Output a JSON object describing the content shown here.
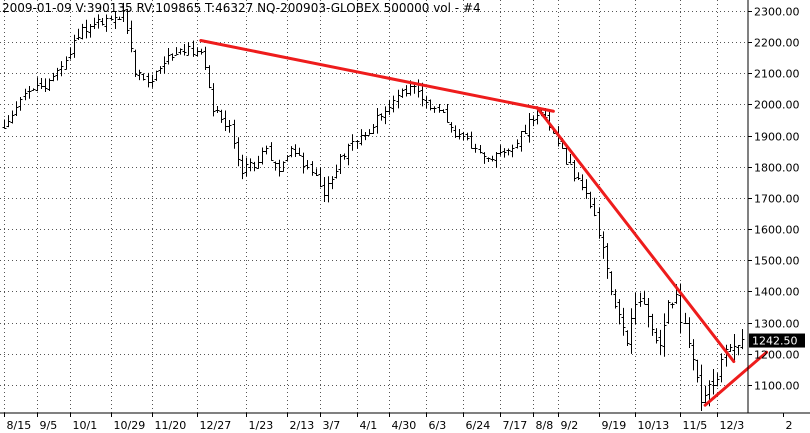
{
  "header": {
    "title": "2009-01-09  V:390135  RV:109865  T:46327  NQ-200903-GLOBEX  500000 vol - #4"
  },
  "chart_data": {
    "type": "ohlc",
    "title": "2009-01-09  V:390135  RV:109865  T:46327  NQ-200903-GLOBEX  500000 vol - #4",
    "xlabel": "",
    "ylabel": "",
    "ylim": [
      1010,
      2335
    ],
    "grid": true,
    "yticks": [
      1100,
      1200,
      1300,
      1400,
      1500,
      1600,
      1700,
      1800,
      1900,
      2000,
      2100,
      2200,
      2300
    ],
    "ytick_labels": [
      "1100.00",
      "1200.00",
      "1300.00",
      "1400.00",
      "1500.00",
      "1600.00",
      "1700.00",
      "1800.00",
      "1900.00",
      "2000.00",
      "2100.00",
      "2200.00",
      "2300.00"
    ],
    "xticks": [
      {
        "bar": 0,
        "label": "8/15"
      },
      {
        "bar": 8,
        "label": "9/5"
      },
      {
        "bar": 16,
        "label": "10/1"
      },
      {
        "bar": 26,
        "label": "10/29"
      },
      {
        "bar": 36,
        "label": "11/20"
      },
      {
        "bar": 47,
        "label": "12/27"
      },
      {
        "bar": 59,
        "label": "1/23"
      },
      {
        "bar": 69,
        "label": "2/13"
      },
      {
        "bar": 77,
        "label": "3/7"
      },
      {
        "bar": 86,
        "label": "4/1"
      },
      {
        "bar": 94,
        "label": "4/30"
      },
      {
        "bar": 103,
        "label": "6/3"
      },
      {
        "bar": 112,
        "label": "6/24"
      },
      {
        "bar": 121,
        "label": "7/17"
      },
      {
        "bar": 129,
        "label": "8/8"
      },
      {
        "bar": 135,
        "label": "9/2"
      },
      {
        "bar": 145,
        "label": "9/19"
      },
      {
        "bar": 154,
        "label": "10/13"
      },
      {
        "bar": 165,
        "label": "11/5"
      },
      {
        "bar": 174,
        "label": "12/3"
      },
      {
        "bar": 190,
        "label": "2"
      }
    ],
    "trendlines": [
      {
        "name": "",
        "from": {
          "bar": 48,
          "value": 2205
        },
        "to": {
          "bar": 134,
          "value": 1978
        }
      },
      {
        "name": "",
        "from": {
          "bar": 130,
          "value": 1990
        },
        "to": {
          "bar": 178,
          "value": 1175
        }
      },
      {
        "name": "",
        "from": {
          "bar": 171,
          "value": 1035
        },
        "to": {
          "bar": 186,
          "value": 1205
        }
      }
    ],
    "last_price": {
      "value": 1242.5,
      "label": "1242.50"
    },
    "bar_count": 182,
    "close_path": [
      [
        0,
        1930
      ],
      [
        5,
        2040
      ],
      [
        10,
        2060
      ],
      [
        15,
        2150
      ],
      [
        19,
        2240
      ],
      [
        24,
        2270
      ],
      [
        29,
        2290
      ],
      [
        32,
        2110
      ],
      [
        35,
        2060
      ],
      [
        40,
        2160
      ],
      [
        44,
        2170
      ],
      [
        48,
        2180
      ],
      [
        51,
        1990
      ],
      [
        55,
        1930
      ],
      [
        58,
        1790
      ],
      [
        61,
        1810
      ],
      [
        64,
        1860
      ],
      [
        67,
        1780
      ],
      [
        70,
        1860
      ],
      [
        74,
        1800
      ],
      [
        78,
        1720
      ],
      [
        81,
        1800
      ],
      [
        85,
        1880
      ],
      [
        89,
        1920
      ],
      [
        93,
        1990
      ],
      [
        97,
        2040
      ],
      [
        100,
        2050
      ],
      [
        104,
        2000
      ],
      [
        107,
        1980
      ],
      [
        110,
        1900
      ],
      [
        113,
        1880
      ],
      [
        117,
        1820
      ],
      [
        120,
        1830
      ],
      [
        124,
        1860
      ],
      [
        128,
        1940
      ],
      [
        131,
        1980
      ],
      [
        134,
        1910
      ],
      [
        137,
        1820
      ],
      [
        140,
        1750
      ],
      [
        143,
        1680
      ],
      [
        146,
        1550
      ],
      [
        148,
        1400
      ],
      [
        150,
        1340
      ],
      [
        152,
        1240
      ],
      [
        154,
        1380
      ],
      [
        157,
        1330
      ],
      [
        160,
        1220
      ],
      [
        162,
        1350
      ],
      [
        164,
        1370
      ],
      [
        166,
        1280
      ],
      [
        168,
        1180
      ],
      [
        170,
        1060
      ],
      [
        172,
        1090
      ],
      [
        174,
        1140
      ],
      [
        176,
        1200
      ],
      [
        178,
        1230
      ],
      [
        181,
        1242.5
      ]
    ]
  }
}
